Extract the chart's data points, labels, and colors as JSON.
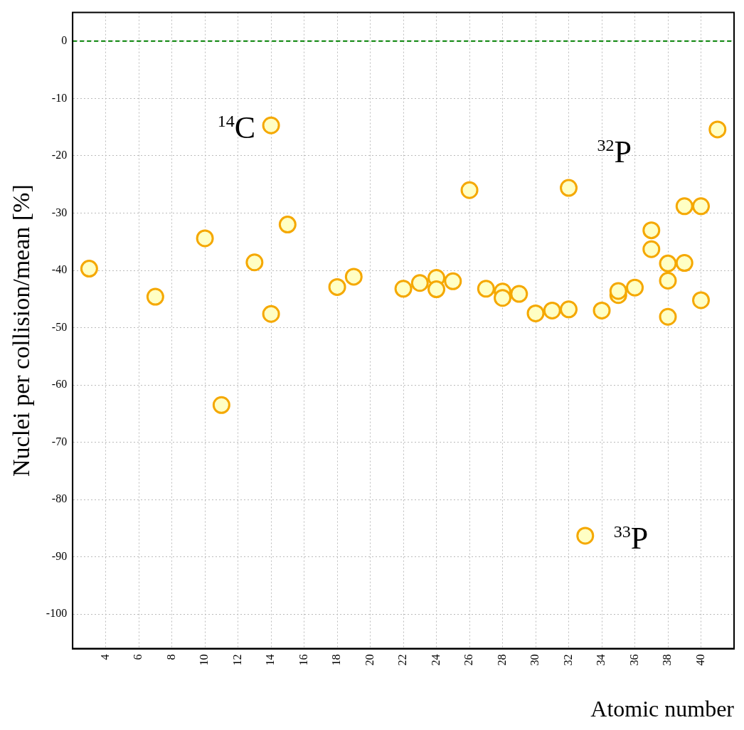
{
  "chart_data": {
    "type": "scatter",
    "xlabel": "Atomic number",
    "ylabel": "Nuclei per collision/mean [%]",
    "xlim": [
      2,
      42
    ],
    "xticks": [
      4,
      6,
      8,
      10,
      12,
      14,
      16,
      18,
      20,
      22,
      24,
      26,
      28,
      30,
      32,
      34,
      36,
      38,
      40
    ],
    "ylim": [
      -106,
      5
    ],
    "yticks": [
      -100,
      -90,
      -80,
      -70,
      -60,
      -50,
      -40,
      -30,
      -20,
      -10,
      0
    ],
    "grid": true,
    "legend": false,
    "marker": "circle",
    "series": [
      {
        "color": "#f5a800",
        "x": [
          3,
          7,
          10,
          11,
          13,
          14,
          14,
          15,
          18,
          19,
          22,
          23,
          24,
          24,
          25,
          26,
          27,
          28,
          28,
          29,
          30,
          31,
          32,
          32,
          33,
          34,
          35,
          35,
          36,
          37,
          37,
          38,
          38,
          38,
          39,
          39,
          40,
          40,
          41
        ],
        "values": [
          -39.7,
          -44.6,
          -34.4,
          -63.5,
          -38.6,
          -14.7,
          -47.6,
          -32.0,
          -42.9,
          -41.1,
          -43.2,
          -42.2,
          -41.3,
          -43.3,
          -41.9,
          -26.0,
          -43.2,
          -43.7,
          -44.8,
          -44.1,
          -47.5,
          -47.0,
          -46.8,
          -25.6,
          -86.3,
          -47.0,
          -44.3,
          -43.6,
          -43.0,
          -33.0,
          -36.3,
          -38.8,
          -41.8,
          -48.1,
          -38.7,
          -28.8,
          -28.8,
          -45.2,
          -15.4
        ]
      }
    ],
    "ref_lines": [
      {
        "axis": "y",
        "value": 0,
        "color": "#008000",
        "line_style": "dashed"
      }
    ],
    "annotations": [
      {
        "text": "$^{14}$C",
        "x": 14,
        "y": -14.7
      },
      {
        "text": "$^{32}$P",
        "x": 32,
        "y": -25.6
      },
      {
        "text": "$^{33}$P",
        "x": 33,
        "y": -86.3
      }
    ]
  }
}
